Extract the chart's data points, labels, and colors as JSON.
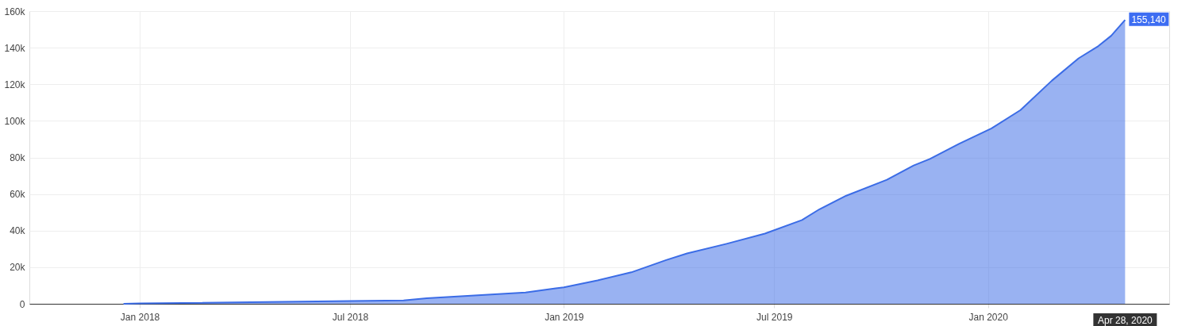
{
  "chart_data": {
    "type": "area",
    "x": [
      "2017-12-18",
      "2018-01-01",
      "2018-07-01",
      "2018-08-16",
      "2018-09-05",
      "2018-11-29",
      "2018-12-25",
      "2019-01-01",
      "2019-01-30",
      "2019-02-28",
      "2019-03-30",
      "2019-04-17",
      "2019-05-21",
      "2019-06-23",
      "2019-07-25",
      "2019-08-09",
      "2019-09-01",
      "2019-10-06",
      "2019-10-29",
      "2019-11-12",
      "2019-12-07",
      "2020-01-04",
      "2020-01-29",
      "2020-02-25",
      "2020-03-19",
      "2020-04-05",
      "2020-04-16",
      "2020-04-28"
    ],
    "series": [
      {
        "color": "#3b6ce6",
        "values": [
          0,
          200,
          1500,
          1800,
          3000,
          6200,
          8500,
          9000,
          12800,
          17200,
          23900,
          27500,
          32800,
          38400,
          45800,
          51700,
          59100,
          67800,
          75600,
          79200,
          87400,
          95900,
          105900,
          122000,
          134200,
          140900,
          146500,
          155140
        ]
      }
    ],
    "xlim": [
      "2017-09-28",
      "2020-06-05"
    ],
    "xticks": [
      {
        "value": "2018-01-01",
        "label": "Jan 2018"
      },
      {
        "value": "2018-07-01",
        "label": "Jul 2018"
      },
      {
        "value": "2019-01-01",
        "label": "Jan 2019"
      },
      {
        "value": "2019-07-01",
        "label": "Jul 2019"
      },
      {
        "value": "2020-01-01",
        "label": "Jan 2020"
      }
    ],
    "ylim": [
      0,
      160000
    ],
    "yticks": [
      0,
      {
        "value": 20000,
        "label": "20k"
      },
      {
        "value": 40000,
        "label": "40k"
      },
      {
        "value": 60000,
        "label": "60k"
      },
      {
        "value": 80000,
        "label": "80k"
      },
      {
        "value": 100000,
        "label": "100k"
      },
      {
        "value": 120000,
        "label": "120k"
      },
      {
        "value": 140000,
        "label": "140k"
      },
      {
        "value": 160000,
        "label": "160k"
      }
    ],
    "grid": true,
    "annotations": [
      {
        "text": "155,140",
        "x": "2020-04-28",
        "y": 155140
      },
      "Apr 28, 2020"
    ]
  }
}
